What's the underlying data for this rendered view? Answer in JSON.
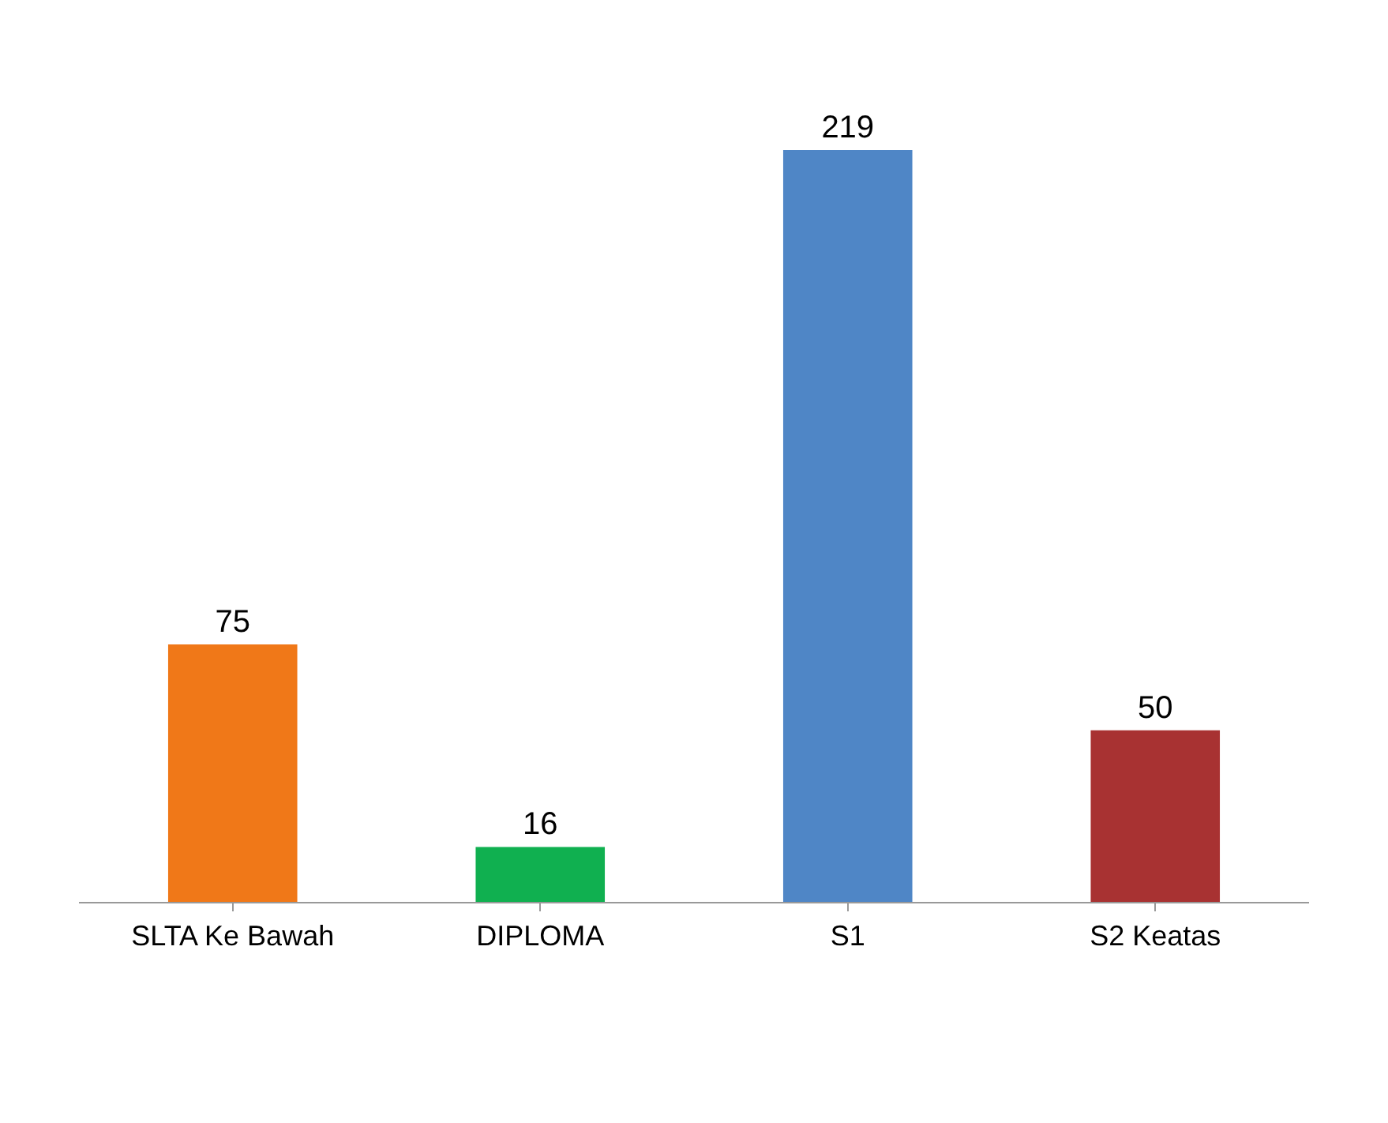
{
  "chart_data": {
    "type": "bar",
    "categories": [
      "SLTA Ke Bawah",
      "DIPLOMA",
      "S1",
      "S2 Keatas"
    ],
    "values": [
      75,
      16,
      219,
      50
    ],
    "colors": [
      "#f07818",
      "#10b050",
      "#4f86c6",
      "#a83232"
    ],
    "data_labels": true
  }
}
